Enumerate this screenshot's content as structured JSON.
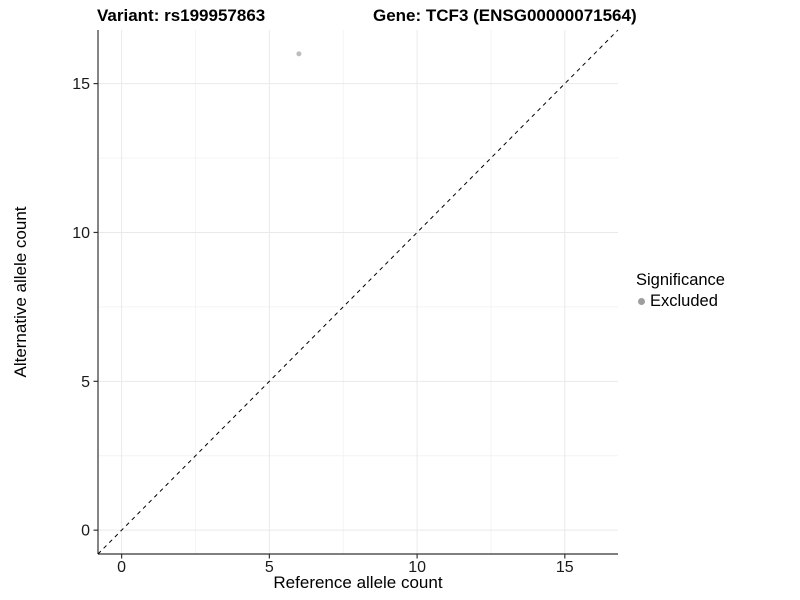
{
  "chart_data": {
    "type": "scatter",
    "title": "Variant: rs199957863",
    "title2": "Gene: TCF3 (ENSG00000071564)",
    "xlabel": "Reference allele count",
    "ylabel": "Alternative allele count",
    "xlim": [
      -0.8,
      16.8
    ],
    "ylim": [
      -0.8,
      16.8
    ],
    "x_ticks": [
      0,
      5,
      10,
      15
    ],
    "y_ticks": [
      0,
      5,
      10,
      15
    ],
    "minor_ticks": [
      2.5,
      7.5,
      12.5
    ],
    "grid": true,
    "points": [
      {
        "x": 6,
        "y": 16,
        "series": "Excluded",
        "color": "#bdbdbd",
        "radius": 2.5
      }
    ],
    "reference_line": {
      "type": "identity",
      "style": "dashed",
      "color": "#000000"
    },
    "legend": {
      "title": "Significance",
      "position": "right",
      "items": [
        {
          "label": "Excluded",
          "color": "#9e9e9e"
        }
      ]
    },
    "colors": {
      "background": "#ffffff",
      "axis": "#333333",
      "grid_major": "#e9e9e9",
      "grid_minor": "#f4f4f4",
      "tick_label": "#1a1a1a"
    }
  }
}
